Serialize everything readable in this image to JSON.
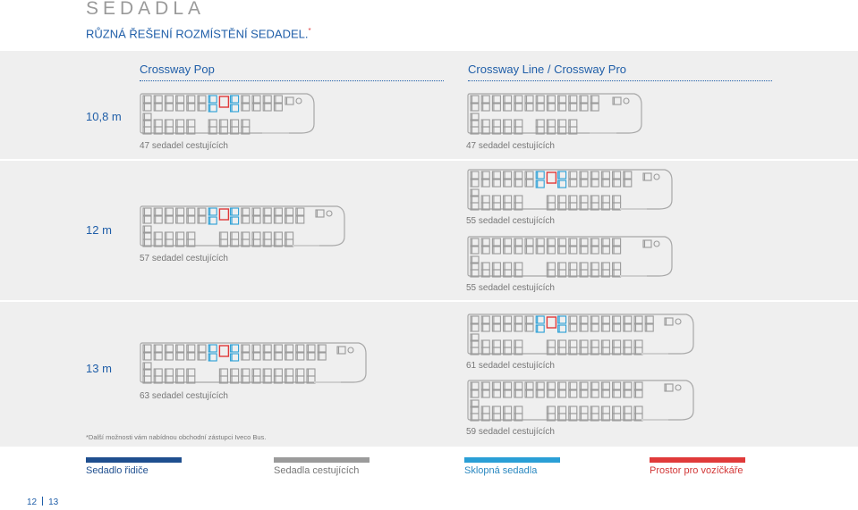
{
  "title": "SEDADLA",
  "subtitle": "RŮZNÁ ŘEŠENÍ ROZMÍSTĚNÍ SEDADEL.",
  "subtitle_mark": "*",
  "columns": [
    "Crossway Pop",
    "Crossway Line / Crossway Pro"
  ],
  "rows": [
    {
      "label": "10,8 m"
    },
    {
      "label": "12 m"
    },
    {
      "label": "13 m"
    }
  ],
  "captions": {
    "pop_108": "47 sedadel cestujících",
    "line_108": "47 sedadel cestujících",
    "pop_12": "57 sedadel cestujících",
    "line_12_a": "55 sedadel cestujících",
    "line_12_b": "55 sedadel cestujících",
    "pop_13": "63 sedadel cestujících",
    "line_13_a": "61 sedadel cestujících",
    "line_13_b": "59 sedadel cestujících"
  },
  "footnote": "*Další možnosti vám nabídnou obchodní zástupci Iveco Bus.",
  "legend": [
    {
      "label": "Sedadlo řidiče",
      "color": "#1f4f8f"
    },
    {
      "label": "Sedadla cestujících",
      "color": "#9b9b9b"
    },
    {
      "label": "Sklopná sedadla",
      "color": "#2a9fd6"
    },
    {
      "label": "Prostor pro vozíčkáře",
      "color": "#e03a3a"
    }
  ],
  "page_left": "12",
  "page_right": "13",
  "colors": {
    "accent": "#1f5ea8",
    "seat": "#9b9b9b",
    "fold": "#2a9fd6",
    "wheelchair": "#e03a3a"
  }
}
